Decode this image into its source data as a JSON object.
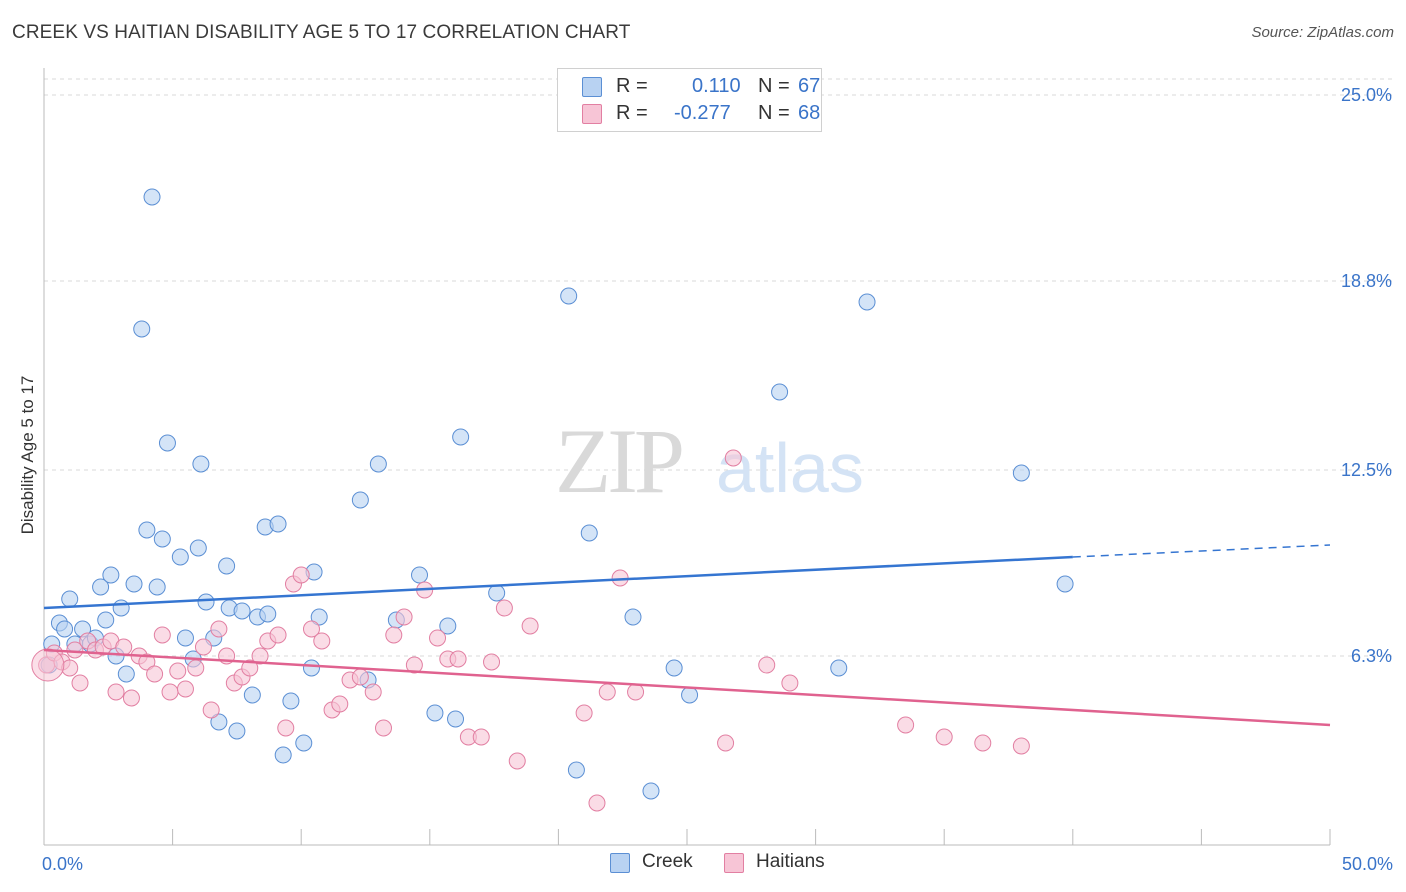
{
  "header": {
    "title": "CREEK VS HAITIAN DISABILITY AGE 5 TO 17 CORRELATION CHART",
    "source": "Source: ZipAtlas.com"
  },
  "watermark": {
    "zip": "ZIP",
    "atlas": "atlas"
  },
  "legend": {
    "rows": [
      {
        "r_label": "R =",
        "r_value": "0.110",
        "n_label": "N =",
        "n_value": "67"
      },
      {
        "r_label": "R =",
        "r_value": "-0.277",
        "n_label": "N =",
        "n_value": "68"
      }
    ],
    "bottom": [
      "Creek",
      "Haitians"
    ]
  },
  "colors": {
    "creek_fill": "#b8d2f2",
    "creek_stroke": "#5b8fd4",
    "creek_line": "#3575d1",
    "haitians_fill": "#f7c5d6",
    "haitians_stroke": "#e27fa2",
    "haitians_line": "#e0628f",
    "tick_text": "#3a74c9",
    "grid": "#d8d8d8"
  },
  "chart_data": {
    "type": "scatter",
    "title": "CREEK VS HAITIAN DISABILITY AGE 5 TO 17 CORRELATION CHART",
    "xlabel": "",
    "ylabel": "Disability Age 5 to 17",
    "xlim": [
      0,
      50
    ],
    "ylim": [
      0,
      25.9
    ],
    "x_tick_labels": [
      "0.0%",
      "50.0%"
    ],
    "y_ticks": [
      {
        "value": 6.3,
        "label": "6.3%"
      },
      {
        "value": 12.5,
        "label": "12.5%"
      },
      {
        "value": 18.8,
        "label": "18.8%"
      },
      {
        "value": 25.0,
        "label": "25.0%"
      }
    ],
    "grid": "horizontal-dashed",
    "legend_position": "top-center",
    "series": [
      {
        "name": "Creek",
        "r": 0.11,
        "n": 67,
        "trend": {
          "x0": 0,
          "y0": 7.9,
          "x1": 40,
          "y1": 9.6,
          "dashed_to_x": 50,
          "dashed_to_y": 10.0
        },
        "points": [
          [
            0.3,
            6.7
          ],
          [
            0.6,
            7.4
          ],
          [
            0.8,
            7.2
          ],
          [
            1.0,
            8.2
          ],
          [
            1.2,
            6.7
          ],
          [
            1.5,
            7.2
          ],
          [
            1.8,
            6.7
          ],
          [
            2.0,
            6.9
          ],
          [
            2.2,
            8.6
          ],
          [
            2.4,
            7.5
          ],
          [
            2.6,
            9.0
          ],
          [
            2.8,
            6.3
          ],
          [
            3.0,
            7.9
          ],
          [
            3.2,
            5.7
          ],
          [
            3.5,
            8.7
          ],
          [
            3.8,
            17.2
          ],
          [
            4.0,
            10.5
          ],
          [
            4.2,
            21.6
          ],
          [
            4.4,
            8.6
          ],
          [
            4.6,
            10.2
          ],
          [
            4.8,
            13.4
          ],
          [
            5.3,
            9.6
          ],
          [
            5.5,
            6.9
          ],
          [
            5.8,
            6.2
          ],
          [
            6.0,
            9.9
          ],
          [
            6.1,
            12.7
          ],
          [
            6.3,
            8.1
          ],
          [
            6.6,
            6.9
          ],
          [
            6.8,
            4.1
          ],
          [
            7.1,
            9.3
          ],
          [
            7.2,
            7.9
          ],
          [
            7.5,
            3.8
          ],
          [
            7.7,
            7.8
          ],
          [
            8.1,
            5.0
          ],
          [
            8.3,
            7.6
          ],
          [
            8.6,
            10.6
          ],
          [
            8.7,
            7.7
          ],
          [
            9.1,
            10.7
          ],
          [
            9.3,
            3.0
          ],
          [
            9.6,
            4.8
          ],
          [
            10.1,
            3.4
          ],
          [
            10.4,
            5.9
          ],
          [
            10.5,
            9.1
          ],
          [
            10.7,
            7.6
          ],
          [
            12.3,
            11.5
          ],
          [
            12.6,
            5.5
          ],
          [
            13.0,
            12.7
          ],
          [
            13.7,
            7.5
          ],
          [
            14.6,
            9.0
          ],
          [
            15.2,
            4.4
          ],
          [
            15.7,
            7.3
          ],
          [
            16.0,
            4.2
          ],
          [
            16.2,
            13.6
          ],
          [
            17.6,
            8.4
          ],
          [
            20.4,
            18.3
          ],
          [
            20.7,
            2.5
          ],
          [
            21.2,
            10.4
          ],
          [
            22.9,
            7.6
          ],
          [
            23.6,
            1.8
          ],
          [
            24.5,
            5.9
          ],
          [
            25.1,
            5.0
          ],
          [
            28.6,
            15.1
          ],
          [
            30.9,
            5.9
          ],
          [
            32.0,
            18.1
          ],
          [
            38.0,
            12.4
          ],
          [
            39.7,
            8.7
          ],
          [
            0.2,
            6.0
          ]
        ]
      },
      {
        "name": "Haitians",
        "r": -0.277,
        "n": 68,
        "trend": {
          "x0": 0,
          "y0": 6.5,
          "x1": 50,
          "y1": 4.0
        },
        "points": [
          [
            0.1,
            6.0
          ],
          [
            0.4,
            6.4
          ],
          [
            0.7,
            6.1
          ],
          [
            1.0,
            5.9
          ],
          [
            1.2,
            6.5
          ],
          [
            1.4,
            5.4
          ],
          [
            1.7,
            6.8
          ],
          [
            2.0,
            6.5
          ],
          [
            2.3,
            6.6
          ],
          [
            2.6,
            6.8
          ],
          [
            2.8,
            5.1
          ],
          [
            3.1,
            6.6
          ],
          [
            3.4,
            4.9
          ],
          [
            3.7,
            6.3
          ],
          [
            4.0,
            6.1
          ],
          [
            4.3,
            5.7
          ],
          [
            4.6,
            7.0
          ],
          [
            4.9,
            5.1
          ],
          [
            5.2,
            5.8
          ],
          [
            5.5,
            5.2
          ],
          [
            5.9,
            5.9
          ],
          [
            6.2,
            6.6
          ],
          [
            6.5,
            4.5
          ],
          [
            6.8,
            7.2
          ],
          [
            7.1,
            6.3
          ],
          [
            7.4,
            5.4
          ],
          [
            7.7,
            5.6
          ],
          [
            8.0,
            5.9
          ],
          [
            8.4,
            6.3
          ],
          [
            8.7,
            6.8
          ],
          [
            9.1,
            7.0
          ],
          [
            9.4,
            3.9
          ],
          [
            9.7,
            8.7
          ],
          [
            10.0,
            9.0
          ],
          [
            10.4,
            7.2
          ],
          [
            10.8,
            6.8
          ],
          [
            11.2,
            4.5
          ],
          [
            11.5,
            4.7
          ],
          [
            11.9,
            5.5
          ],
          [
            12.3,
            5.6
          ],
          [
            12.8,
            5.1
          ],
          [
            13.2,
            3.9
          ],
          [
            13.6,
            7.0
          ],
          [
            14.0,
            7.6
          ],
          [
            14.4,
            6.0
          ],
          [
            14.8,
            8.5
          ],
          [
            15.3,
            6.9
          ],
          [
            15.7,
            6.2
          ],
          [
            16.1,
            6.2
          ],
          [
            16.5,
            3.6
          ],
          [
            17.0,
            3.6
          ],
          [
            17.4,
            6.1
          ],
          [
            17.9,
            7.9
          ],
          [
            18.4,
            2.8
          ],
          [
            18.9,
            7.3
          ],
          [
            21.0,
            4.4
          ],
          [
            21.5,
            1.4
          ],
          [
            21.9,
            5.1
          ],
          [
            22.4,
            8.9
          ],
          [
            23.0,
            5.1
          ],
          [
            26.5,
            3.4
          ],
          [
            26.8,
            12.9
          ],
          [
            28.1,
            6.0
          ],
          [
            29.0,
            5.4
          ],
          [
            33.5,
            4.0
          ],
          [
            35.0,
            3.6
          ],
          [
            36.5,
            3.4
          ],
          [
            38.0,
            3.3
          ]
        ]
      }
    ]
  }
}
